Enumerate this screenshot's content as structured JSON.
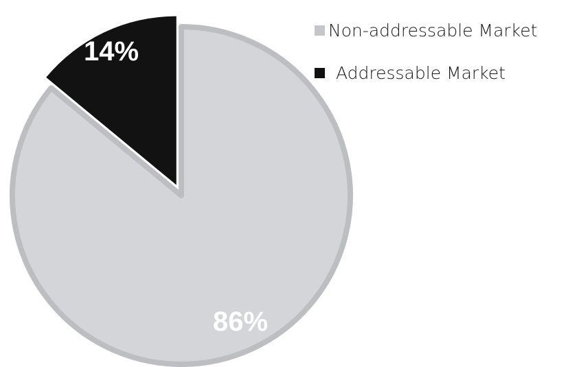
{
  "chart_data": {
    "type": "pie",
    "title": "",
    "slices": [
      {
        "label": "Non-addressable Market",
        "value": 86,
        "display": "86%",
        "color": "#d3d5d8",
        "stroke": "#bcbec1",
        "text_color": "#ffffff",
        "exploded": false
      },
      {
        "label": "Addressable Market",
        "value": 14,
        "display": "14%",
        "color": "#121212",
        "stroke": "#121212",
        "text_color": "#ffffff",
        "exploded": true
      }
    ],
    "legend": {
      "placement": "top-right",
      "entries": [
        {
          "label": "Non-addressable Market",
          "color": "#c4c6c9"
        },
        {
          "label": "Addressable Market",
          "color": "#111111"
        }
      ]
    }
  }
}
